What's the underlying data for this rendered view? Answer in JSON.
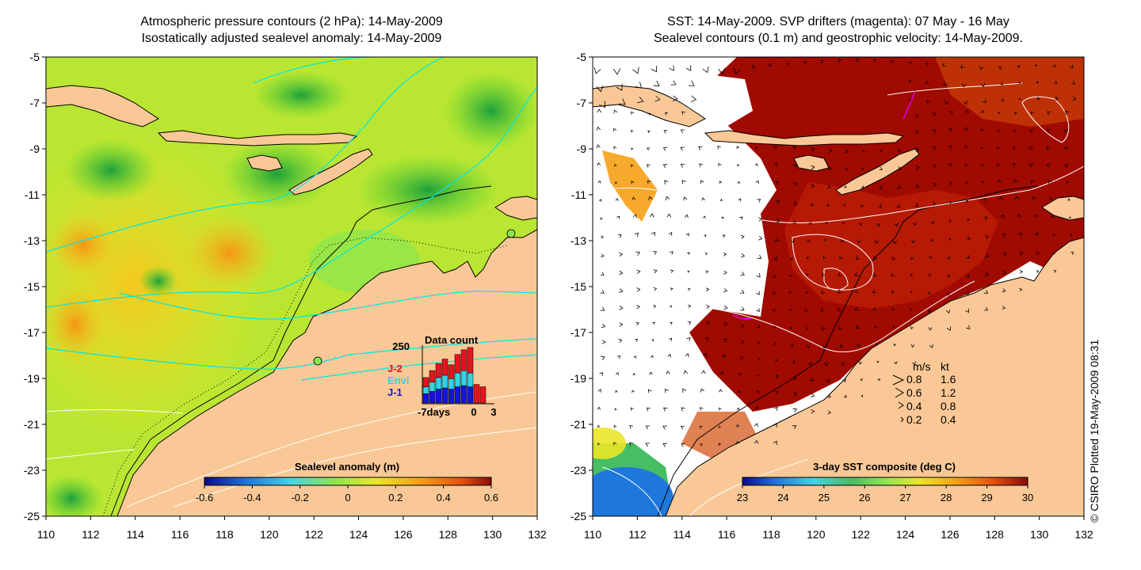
{
  "left_panel": {
    "title_line1": "Atmospheric pressure contours (2 hPa): 14-May-2009",
    "title_line2": "Isostatically adjusted sealevel anomaly: 14-May-2009",
    "colorbar": {
      "title": "Sealevel anomaly (m)",
      "ticks": [
        "-0.6",
        "-0.4",
        "-0.2",
        "0",
        "0.2",
        "0.4",
        "0.6"
      ],
      "colors": [
        "#0a0a8c",
        "#1e78dc",
        "#46d2e6",
        "#8ce650",
        "#ebe628",
        "#f5a014",
        "#e6500a",
        "#8c0a0a"
      ]
    },
    "inset": {
      "title": "Data count",
      "ymax_label": "250",
      "x_labels": [
        "-7days",
        "0",
        "3"
      ],
      "legend": [
        {
          "label": "J-2",
          "color": "#e6141e"
        },
        {
          "label": "Envi",
          "color": "#32d2e6"
        },
        {
          "label": "J-1",
          "color": "#1414dc"
        }
      ],
      "chart_data": {
        "type": "bar",
        "x": [
          -7,
          -6,
          -5,
          -4,
          -3,
          -2,
          -1,
          0,
          1,
          2,
          3
        ],
        "series": [
          {
            "name": "J-1",
            "values": [
              40,
              50,
              60,
              65,
              60,
              70,
              75,
              70,
              0,
              0,
              0
            ]
          },
          {
            "name": "Envi",
            "values": [
              30,
              40,
              50,
              55,
              45,
              60,
              65,
              60,
              0,
              0,
              0
            ]
          },
          {
            "name": "J-2",
            "values": [
              40,
              50,
              60,
              70,
              60,
              80,
              90,
              110,
              80,
              70,
              0
            ]
          }
        ],
        "ylim": [
          0,
          250
        ]
      }
    }
  },
  "right_panel": {
    "title_line1": "SST: 14-May-2009. SVP drifters (magenta): 07 May - 16 May",
    "title_line2": "Sealevel contours (0.1 m) and geostrophic velocity: 14-May-2009.",
    "colorbar": {
      "title": "3-day SST composite (deg C)",
      "ticks": [
        "23",
        "24",
        "25",
        "26",
        "27",
        "28",
        "29",
        "30"
      ],
      "colors": [
        "#0a0a8c",
        "#1e78dc",
        "#46d2e6",
        "#46be64",
        "#8ce650",
        "#ebe628",
        "#f5a014",
        "#e6500a",
        "#8c0a0a"
      ]
    },
    "velocity_legend": {
      "header_ms": "m/s",
      "header_kt": "kt",
      "rows": [
        {
          "ms": "0.8",
          "kt": "1.6"
        },
        {
          "ms": "0.6",
          "kt": "1.2"
        },
        {
          "ms": "0.4",
          "kt": "0.8"
        },
        {
          "ms": "0.2",
          "kt": "0.4"
        }
      ]
    }
  },
  "axes": {
    "y_labels": [
      "-5",
      "-7",
      "-9",
      "-11",
      "-13",
      "-15",
      "-17",
      "-19",
      "-21",
      "-23",
      "-25"
    ],
    "x_labels": [
      "110",
      "112",
      "114",
      "116",
      "118",
      "120",
      "122",
      "124",
      "126",
      "128",
      "130",
      "132"
    ]
  },
  "colors": {
    "land": "#fac896",
    "contour": "#00e6e6",
    "coast": "#000000",
    "sst_hot": "#a00a00",
    "sst_warm": "#d24b0a",
    "cloud": "#ffffff"
  },
  "credit": "© CSIRO Plotted 19-May-2009 08:31"
}
